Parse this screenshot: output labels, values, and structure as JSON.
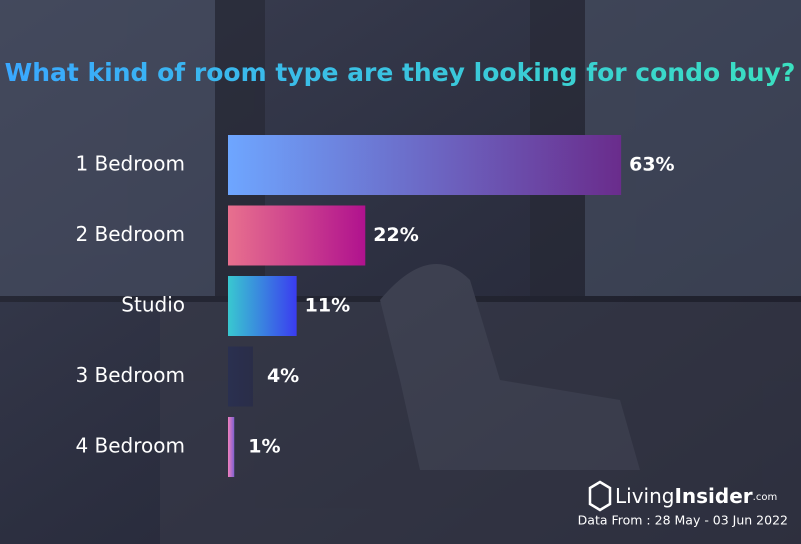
{
  "chart_data": {
    "type": "hbar",
    "title": "What kind of room type are they looking for condo buy?",
    "categories": [
      "1 Bedroom",
      "2 Bedroom",
      "Studio",
      "3 Bedroom",
      "4 Bedroom"
    ],
    "values": [
      63,
      22,
      11,
      4,
      1
    ],
    "value_labels": [
      "63%",
      "22%",
      "11%",
      "4%",
      "1%"
    ],
    "colors": [
      [
        "#6ea6ff",
        "#6a2c8c"
      ],
      [
        "#e8708e",
        "#b0128e"
      ],
      [
        "#39c8d0",
        "#3a3cf0"
      ],
      [
        "#2a3050",
        "#2a2d48"
      ],
      [
        "#f080c0",
        "#8060d0"
      ]
    ]
  },
  "footer": {
    "brand_first": "Living",
    "brand_second": "Insider",
    "brand_suffix": ".com",
    "source": "Data From : 28 May - 03 Jun 2022"
  }
}
